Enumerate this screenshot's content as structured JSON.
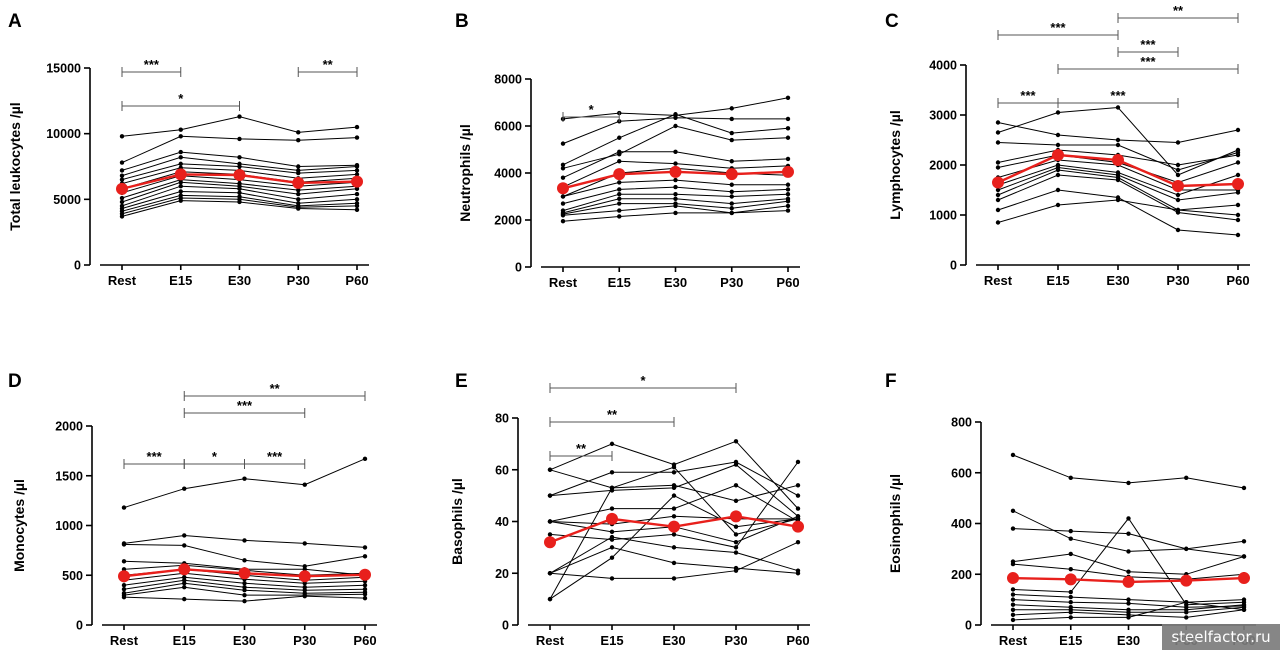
{
  "watermark": "steelfactor.ru",
  "colors": {
    "series": "#000000",
    "mean": "#e8201c",
    "axis": "#000000"
  },
  "chart_data": [
    {
      "type": "line",
      "panel": "A",
      "ylabel": "Total leukocytes /µl",
      "categories": [
        "Rest",
        "E15",
        "E30",
        "P30",
        "P60"
      ],
      "ylim": [
        0,
        15000
      ],
      "yticks": [
        0,
        5000,
        10000,
        15000
      ],
      "mean": [
        5800,
        6900,
        6850,
        6250,
        6350
      ],
      "series": [
        {
          "values": [
            9800,
            10300,
            11300,
            10100,
            10500
          ]
        },
        {
          "values": [
            7800,
            9800,
            9600,
            9500,
            9700
          ]
        },
        {
          "values": [
            7200,
            8600,
            8200,
            7500,
            7600
          ]
        },
        {
          "values": [
            6800,
            8200,
            7700,
            7200,
            7500
          ]
        },
        {
          "values": [
            6500,
            7700,
            7500,
            7000,
            7200
          ]
        },
        {
          "values": [
            6200,
            7400,
            7200,
            6600,
            6900
          ]
        },
        {
          "values": [
            5800,
            7100,
            6900,
            6300,
            6600
          ]
        },
        {
          "values": [
            5500,
            6800,
            6500,
            6000,
            6300
          ]
        },
        {
          "values": [
            5100,
            6500,
            6200,
            5700,
            6000
          ]
        },
        {
          "values": [
            4800,
            6300,
            6000,
            5400,
            5800
          ]
        },
        {
          "values": [
            4500,
            6000,
            5800,
            5000,
            5400
          ]
        },
        {
          "values": [
            4300,
            5600,
            5500,
            4700,
            5000
          ]
        },
        {
          "values": [
            4100,
            5300,
            5200,
            4500,
            4700
          ]
        },
        {
          "values": [
            3900,
            5100,
            5000,
            4400,
            4500
          ]
        },
        {
          "values": [
            3700,
            4900,
            4800,
            4300,
            4200
          ]
        }
      ],
      "brackets": [
        {
          "from": 0,
          "to": 2,
          "level": 0,
          "label": "*"
        },
        {
          "from": 0,
          "to": 1,
          "level": 2,
          "label": "***"
        },
        {
          "from": 3,
          "to": 4,
          "level": 2,
          "label": "**"
        }
      ]
    },
    {
      "type": "line",
      "panel": "B",
      "ylabel": "Neutrophils /µl",
      "categories": [
        "Rest",
        "E15",
        "E30",
        "P30",
        "P60"
      ],
      "ylim": [
        0,
        8000
      ],
      "yticks": [
        0,
        2000,
        4000,
        6000,
        8000
      ],
      "mean": [
        3350,
        3950,
        4050,
        3950,
        4050
      ],
      "series": [
        {
          "values": [
            6300,
            6550,
            6450,
            6750,
            7200
          ]
        },
        {
          "values": [
            5250,
            6200,
            6350,
            6300,
            6300
          ]
        },
        {
          "values": [
            4350,
            5500,
            6500,
            5700,
            5900
          ]
        },
        {
          "values": [
            4200,
            4800,
            6000,
            5400,
            5500
          ]
        },
        {
          "values": [
            3800,
            4900,
            4900,
            4500,
            4600
          ]
        },
        {
          "values": [
            3400,
            4500,
            4400,
            4200,
            4300
          ]
        },
        {
          "values": [
            3000,
            4000,
            4200,
            4000,
            3900
          ]
        },
        {
          "values": [
            3000,
            3600,
            3700,
            3500,
            3500
          ]
        },
        {
          "values": [
            2700,
            3300,
            3400,
            3200,
            3300
          ]
        },
        {
          "values": [
            2400,
            3100,
            3100,
            3000,
            3100
          ]
        },
        {
          "values": [
            2300,
            2900,
            2900,
            2700,
            2900
          ]
        },
        {
          "values": [
            2250,
            2700,
            2700,
            2500,
            2800
          ]
        },
        {
          "values": [
            2200,
            2400,
            2600,
            2300,
            2600
          ]
        },
        {
          "values": [
            1950,
            2150,
            2300,
            2300,
            2400
          ]
        }
      ],
      "brackets": [
        {
          "from": 0,
          "to": 1,
          "level": 0,
          "label": "*"
        }
      ]
    },
    {
      "type": "line",
      "panel": "C",
      "ylabel": "Lymphocytes /µl",
      "categories": [
        "Rest",
        "E15",
        "E30",
        "P30",
        "P60"
      ],
      "ylim": [
        0,
        4000
      ],
      "yticks": [
        0,
        1000,
        2000,
        3000,
        4000
      ],
      "mean": [
        1650,
        2200,
        2100,
        1580,
        1620
      ],
      "series": [
        {
          "values": [
            2850,
            2600,
            2500,
            2450,
            2700
          ]
        },
        {
          "values": [
            2650,
            3050,
            3150,
            1800,
            2300
          ]
        },
        {
          "values": [
            2450,
            2400,
            2400,
            1900,
            2250
          ]
        },
        {
          "values": [
            2050,
            2300,
            2200,
            2000,
            2200
          ]
        },
        {
          "values": [
            1950,
            2200,
            2050,
            1650,
            2050
          ]
        },
        {
          "values": [
            1750,
            2100,
            2000,
            1500,
            1500
          ]
        },
        {
          "values": [
            1600,
            2000,
            1850,
            1400,
            1800
          ]
        },
        {
          "values": [
            1500,
            1950,
            1800,
            1300,
            1450
          ]
        },
        {
          "values": [
            1400,
            1900,
            1750,
            1100,
            1000
          ]
        },
        {
          "values": [
            1300,
            1800,
            1700,
            1050,
            900
          ]
        },
        {
          "values": [
            1100,
            1500,
            1350,
            700,
            600
          ]
        },
        {
          "values": [
            850,
            1200,
            1300,
            1100,
            1200
          ]
        }
      ],
      "brackets": [
        {
          "from": 0,
          "to": 2,
          "level": 4,
          "label": "***"
        },
        {
          "from": 2,
          "to": 4,
          "level": 5,
          "label": "**"
        },
        {
          "from": 2,
          "to": 3,
          "level": 3,
          "label": "***"
        },
        {
          "from": 1,
          "to": 4,
          "level": 2,
          "label": "***"
        },
        {
          "from": 0,
          "to": 1,
          "level": 0,
          "label": "***"
        },
        {
          "from": 1,
          "to": 3,
          "level": 0,
          "label": "***"
        }
      ]
    },
    {
      "type": "line",
      "panel": "D",
      "ylabel": "Monocytes /µl",
      "categories": [
        "Rest",
        "E15",
        "E30",
        "P30",
        "P60"
      ],
      "ylim": [
        0,
        2000
      ],
      "yticks": [
        0,
        500,
        1000,
        1500,
        2000
      ],
      "mean": [
        490,
        560,
        520,
        490,
        505
      ],
      "series": [
        {
          "values": [
            1180,
            1370,
            1470,
            1410,
            1670
          ]
        },
        {
          "values": [
            820,
            900,
            850,
            820,
            780
          ]
        },
        {
          "values": [
            810,
            800,
            650,
            590,
            690
          ]
        },
        {
          "values": [
            640,
            620,
            560,
            560,
            500
          ]
        },
        {
          "values": [
            560,
            600,
            550,
            500,
            520
          ]
        },
        {
          "values": [
            500,
            560,
            500,
            450,
            480
          ]
        },
        {
          "values": [
            450,
            520,
            460,
            420,
            440
          ]
        },
        {
          "values": [
            400,
            480,
            420,
            380,
            400
          ]
        },
        {
          "values": [
            360,
            450,
            380,
            350,
            360
          ]
        },
        {
          "values": [
            320,
            420,
            350,
            320,
            330
          ]
        },
        {
          "values": [
            300,
            380,
            300,
            300,
            310
          ]
        },
        {
          "values": [
            280,
            260,
            240,
            290,
            270
          ]
        }
      ],
      "brackets": [
        {
          "from": 1,
          "to": 4,
          "level": 4,
          "label": "**"
        },
        {
          "from": 1,
          "to": 3,
          "level": 3,
          "label": "***"
        },
        {
          "from": 0,
          "to": 1,
          "level": 0,
          "label": "***"
        },
        {
          "from": 1,
          "to": 2,
          "level": 0,
          "label": "*"
        },
        {
          "from": 2,
          "to": 3,
          "level": 0,
          "label": "***"
        }
      ]
    },
    {
      "type": "line",
      "panel": "E",
      "ylabel": "Basophils /µl",
      "categories": [
        "Rest",
        "E15",
        "E30",
        "P30",
        "P60"
      ],
      "ylim": [
        0,
        80
      ],
      "yticks": [
        0,
        20,
        40,
        60,
        80
      ],
      "mean": [
        32,
        41,
        38,
        42,
        38
      ],
      "series": [
        {
          "values": [
            60,
            70,
            62,
            71,
            45
          ]
        },
        {
          "values": [
            60,
            53,
            54,
            48,
            54
          ]
        },
        {
          "values": [
            50,
            59,
            59,
            63,
            50
          ]
        },
        {
          "values": [
            50,
            52,
            53,
            62,
            42
          ]
        },
        {
          "values": [
            40,
            45,
            45,
            54,
            40
          ]
        },
        {
          "values": [
            40,
            39,
            42,
            41,
            41
          ]
        },
        {
          "values": [
            40,
            36,
            38,
            32,
            42
          ]
        },
        {
          "values": [
            35,
            33,
            35,
            30,
            63
          ]
        },
        {
          "values": [
            20,
            34,
            30,
            28,
            21
          ]
        },
        {
          "values": [
            20,
            30,
            24,
            22,
            20
          ]
        },
        {
          "values": [
            20,
            18,
            18,
            21,
            32
          ]
        },
        {
          "values": [
            10,
            26,
            50,
            38,
            41
          ]
        },
        {
          "values": [
            10,
            53,
            61,
            35,
            41
          ]
        }
      ],
      "brackets": [
        {
          "from": 0,
          "to": 3,
          "level": 4,
          "label": "*"
        },
        {
          "from": 0,
          "to": 2,
          "level": 2,
          "label": "**"
        },
        {
          "from": 0,
          "to": 1,
          "level": 0,
          "label": "**"
        }
      ]
    },
    {
      "type": "line",
      "panel": "F",
      "ylabel": "Eosinophils /µl",
      "categories": [
        "Rest",
        "E15",
        "E30",
        "P30",
        "P60"
      ],
      "ylim": [
        0,
        800
      ],
      "yticks": [
        0,
        200,
        400,
        600,
        800
      ],
      "mean": [
        185,
        180,
        170,
        175,
        185
      ],
      "series": [
        {
          "values": [
            670,
            580,
            560,
            580,
            540
          ]
        },
        {
          "values": [
            450,
            340,
            290,
            300,
            270
          ]
        },
        {
          "values": [
            380,
            370,
            360,
            300,
            330
          ]
        },
        {
          "values": [
            250,
            280,
            210,
            200,
            270
          ]
        },
        {
          "values": [
            240,
            220,
            190,
            180,
            200
          ]
        },
        {
          "values": [
            140,
            130,
            420,
            80,
            90
          ]
        },
        {
          "values": [
            120,
            110,
            100,
            90,
            100
          ]
        },
        {
          "values": [
            100,
            90,
            85,
            70,
            75
          ]
        },
        {
          "values": [
            80,
            70,
            60,
            60,
            80
          ]
        },
        {
          "values": [
            60,
            60,
            50,
            50,
            70
          ]
        },
        {
          "values": [
            40,
            50,
            40,
            30,
            60
          ]
        },
        {
          "values": [
            20,
            30,
            30,
            90,
            60
          ]
        }
      ],
      "brackets": []
    }
  ]
}
